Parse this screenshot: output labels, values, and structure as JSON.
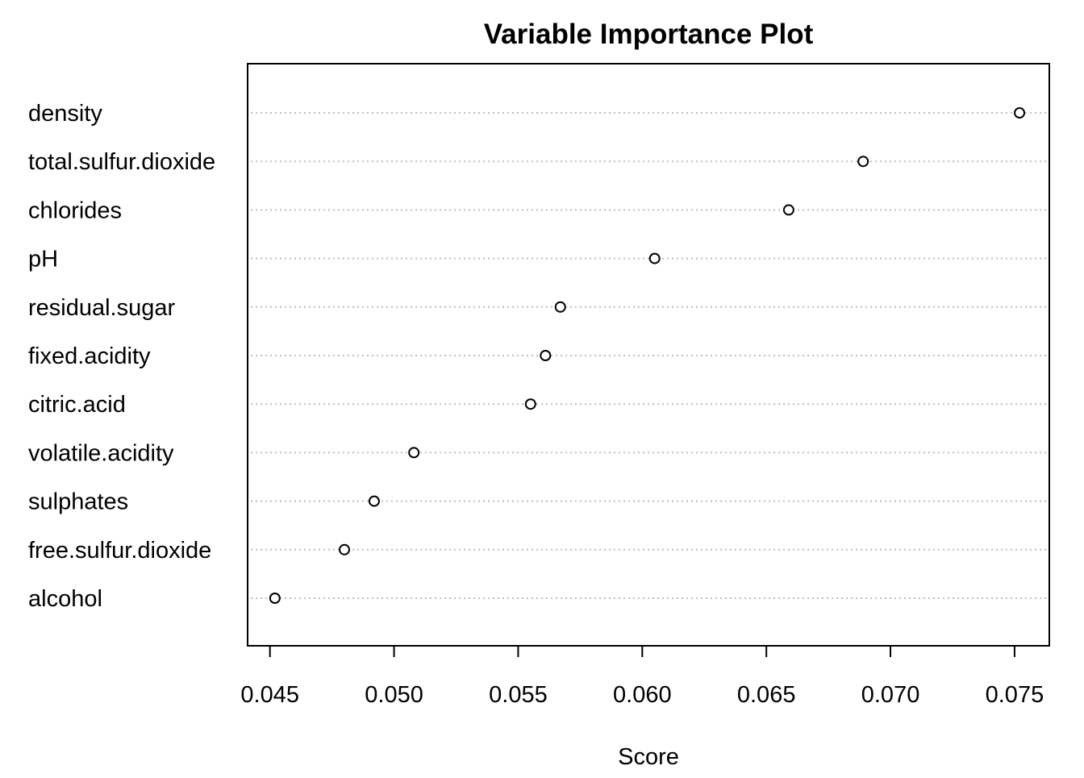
{
  "chart_data": {
    "type": "scatter",
    "subtype": "dotchart",
    "title": "Variable Importance Plot",
    "xlabel": "Score",
    "ylabel": "",
    "xlim": [
      0.0441,
      0.0764
    ],
    "xticks": [
      0.045,
      0.05,
      0.055,
      0.06,
      0.065,
      0.07,
      0.075
    ],
    "xtick_labels": [
      "0.045",
      "0.050",
      "0.055",
      "0.060",
      "0.065",
      "0.070",
      "0.075"
    ],
    "grid": "dotted horizontal lines per category",
    "legend": "none",
    "categories": [
      "density",
      "total.sulfur.dioxide",
      "chlorides",
      "pH",
      "residual.sugar",
      "fixed.acidity",
      "citric.acid",
      "volatile.acidity",
      "sulphates",
      "free.sulfur.dioxide",
      "alcohol"
    ],
    "values": [
      0.0752,
      0.0689,
      0.0659,
      0.0605,
      0.0567,
      0.0561,
      0.0555,
      0.0508,
      0.0492,
      0.048,
      0.0452
    ],
    "colors": {
      "point": "#000000",
      "grid": "#bebebe",
      "frame": "#000000"
    }
  }
}
